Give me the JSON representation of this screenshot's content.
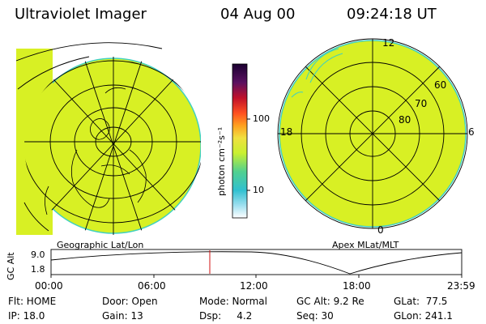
{
  "header": {
    "title": "Ultraviolet Imager",
    "date": "04 Aug 00",
    "time": "09:24:18 UT"
  },
  "left_map": {
    "caption": "Geographic Lat/Lon"
  },
  "right_map": {
    "caption": "Apex MLat/MLT",
    "mlt_labels": {
      "top": "12",
      "left": "18",
      "right": "6",
      "bottom": "0"
    },
    "lat_labels": [
      "60",
      "70",
      "80"
    ]
  },
  "colorbar": {
    "unit": "photon cm⁻²s⁻¹",
    "ticks": [
      "100",
      "10"
    ]
  },
  "altitude_plot": {
    "ylabel": "GC Alt",
    "yticks": [
      "9.0",
      "1.8"
    ],
    "xticks": [
      "00:00",
      "06:00",
      "12:00",
      "18:00",
      "23:59"
    ],
    "marker_color": "#d01010"
  },
  "info": {
    "row1": {
      "flt": "Flt: HOME",
      "door": "Door: Open",
      "mode": "Mode: Normal",
      "gcalt": "GC Alt: 9.2 Re",
      "glat": "GLat:  77.5"
    },
    "row2": {
      "ip": "IP: 18.0",
      "gain": "Gain: 13",
      "dsp": "Dsp:     4.2",
      "seq": "Seq: 30",
      "glon": "GLon: 241.1"
    }
  },
  "colors": {
    "map_fill": "#d8f024",
    "map_edge": "#3fd0c0",
    "grid": "#000000"
  }
}
